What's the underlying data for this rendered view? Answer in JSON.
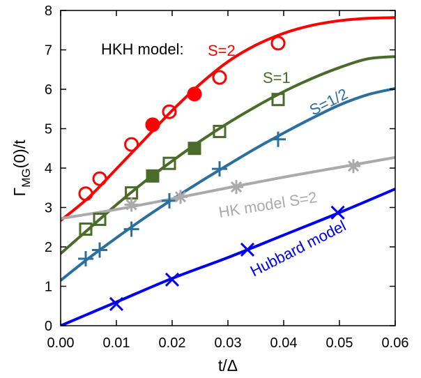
{
  "chart_data": {
    "type": "line",
    "xlabel": "t/Δ",
    "ylabel_main": "Γ",
    "ylabel_sub": "MG",
    "ylabel_tail": "(0)/t",
    "xlim": [
      0,
      0.06
    ],
    "ylim": [
      0,
      8
    ],
    "xticks": [
      "0.00",
      "0.01",
      "0.02",
      "0.03",
      "0.04",
      "0.05",
      "0.06"
    ],
    "yticks": [
      "0",
      "1",
      "2",
      "3",
      "4",
      "5",
      "6",
      "7",
      "8"
    ],
    "grid": false,
    "annotations": {
      "hkh_label": "HKH model:",
      "s2_label": "S=2",
      "s1_label": "S=1",
      "s12_label": "S=1/2",
      "hk_label": "HK model S=2",
      "hubbard_label": "Hubbard model"
    },
    "series": [
      {
        "key": "hkh_s2",
        "color": "#ff0000",
        "curve": [
          [
            0,
            2.67
          ],
          [
            0.005,
            3.25
          ],
          [
            0.01,
            3.98
          ],
          [
            0.015,
            4.72
          ],
          [
            0.02,
            5.46
          ],
          [
            0.025,
            6.13
          ],
          [
            0.03,
            6.7
          ],
          [
            0.035,
            7.12
          ],
          [
            0.04,
            7.42
          ],
          [
            0.045,
            7.62
          ],
          [
            0.05,
            7.74
          ],
          [
            0.055,
            7.8
          ],
          [
            0.06,
            7.82
          ]
        ],
        "open_points": [
          [
            0.0045,
            3.35
          ],
          [
            0.007,
            3.73
          ],
          [
            0.0127,
            4.6
          ],
          [
            0.0195,
            5.43
          ],
          [
            0.0285,
            6.3
          ],
          [
            0.039,
            7.17
          ]
        ],
        "filled_points": [
          [
            0.0165,
            5.1
          ],
          [
            0.024,
            5.88
          ]
        ],
        "marker": "circle"
      },
      {
        "key": "hkh_s1",
        "color": "#4a6b2a",
        "curve": [
          [
            0,
            1.83
          ],
          [
            0.005,
            2.45
          ],
          [
            0.01,
            3.07
          ],
          [
            0.015,
            3.65
          ],
          [
            0.02,
            4.18
          ],
          [
            0.025,
            4.68
          ],
          [
            0.03,
            5.14
          ],
          [
            0.035,
            5.56
          ],
          [
            0.04,
            5.94
          ],
          [
            0.045,
            6.27
          ],
          [
            0.05,
            6.55
          ],
          [
            0.055,
            6.77
          ],
          [
            0.06,
            6.83
          ]
        ],
        "open_points": [
          [
            0.0045,
            2.45
          ],
          [
            0.007,
            2.7
          ],
          [
            0.0127,
            3.37
          ],
          [
            0.0195,
            4.12
          ],
          [
            0.0285,
            4.93
          ],
          [
            0.039,
            5.74
          ]
        ],
        "filled_points": [
          [
            0.0165,
            3.8
          ],
          [
            0.024,
            4.5
          ]
        ],
        "marker": "square"
      },
      {
        "key": "hkh_s12",
        "color": "#2a6fa0",
        "curve": [
          [
            0,
            1.15
          ],
          [
            0.005,
            1.71
          ],
          [
            0.01,
            2.23
          ],
          [
            0.015,
            2.73
          ],
          [
            0.02,
            3.2
          ],
          [
            0.025,
            3.65
          ],
          [
            0.03,
            4.08
          ],
          [
            0.035,
            4.5
          ],
          [
            0.04,
            4.89
          ],
          [
            0.045,
            5.26
          ],
          [
            0.05,
            5.6
          ],
          [
            0.055,
            5.86
          ],
          [
            0.06,
            6.02
          ]
        ],
        "points": [
          [
            0.0045,
            1.7
          ],
          [
            0.007,
            1.92
          ],
          [
            0.0127,
            2.45
          ],
          [
            0.0195,
            3.17
          ],
          [
            0.0285,
            3.98
          ],
          [
            0.039,
            4.73
          ]
        ],
        "marker": "plus"
      },
      {
        "key": "hk_s2",
        "color": "#aaaaaa",
        "curve": [
          [
            0,
            2.72
          ],
          [
            0.01,
            2.95
          ],
          [
            0.02,
            3.22
          ],
          [
            0.03,
            3.5
          ],
          [
            0.04,
            3.77
          ],
          [
            0.05,
            4.02
          ],
          [
            0.06,
            4.27
          ]
        ],
        "points": [
          [
            0.0127,
            3.07
          ],
          [
            0.0215,
            3.27
          ],
          [
            0.0315,
            3.52
          ],
          [
            0.0525,
            4.05
          ]
        ],
        "marker": "star"
      },
      {
        "key": "hubbard",
        "color": "#0000ee",
        "curve": [
          [
            0,
            0.0
          ],
          [
            0.01,
            0.6
          ],
          [
            0.02,
            1.2
          ],
          [
            0.03,
            1.73
          ],
          [
            0.04,
            2.3
          ],
          [
            0.05,
            2.87
          ],
          [
            0.06,
            3.47
          ]
        ],
        "points": [
          [
            0.01,
            0.55
          ],
          [
            0.02,
            1.17
          ],
          [
            0.0335,
            1.93
          ],
          [
            0.0497,
            2.87
          ]
        ],
        "marker": "x"
      }
    ]
  }
}
